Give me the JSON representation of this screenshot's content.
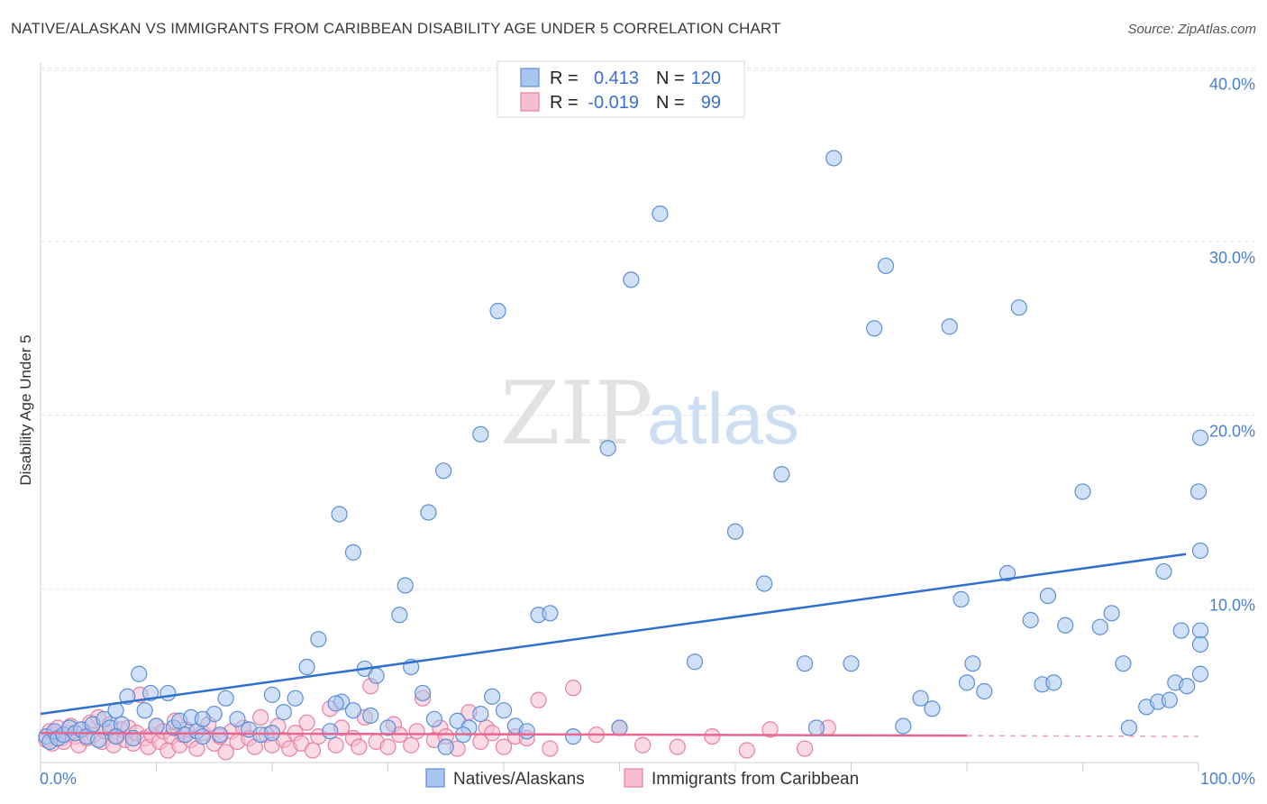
{
  "title": "NATIVE/ALASKAN VS IMMIGRANTS FROM CARIBBEAN DISABILITY AGE UNDER 5 CORRELATION CHART",
  "source": "Source: ZipAtlas.com",
  "watermark": {
    "zip": "ZIP",
    "atlas": "atlas"
  },
  "colors": {
    "blue": "#5b8fd6",
    "blue_fill": "#a9c6ef",
    "pink": "#e77fa4",
    "pink_fill": "#f5bdd0",
    "blue_line": "#2f6fce",
    "pink_line": "#e8668f"
  },
  "legend": {
    "rows": [
      {
        "r_label": "R =",
        "r_value": "0.413",
        "n_label": "N =",
        "n_value": "120"
      },
      {
        "r_label": "R =",
        "r_value": "-0.019",
        "n_label": "N =",
        "n_value": "99"
      }
    ]
  },
  "chart_data": {
    "type": "scatter",
    "title": "NATIVE/ALASKAN VS IMMIGRANTS FROM CARIBBEAN DISABILITY AGE UNDER 5 CORRELATION CHART",
    "xlabel": "",
    "ylabel": "Disability Age Under 5",
    "xlim": [
      0,
      100
    ],
    "ylim": [
      0,
      41
    ],
    "x_tick_labels": [
      "0.0%",
      "100.0%"
    ],
    "y_ticks": [
      10,
      20,
      30,
      40
    ],
    "y_tick_labels": [
      "10.0%",
      "20.0%",
      "30.0%",
      "40.0%"
    ],
    "grid": true,
    "series": [
      {
        "name": "Natives/Alaskans",
        "r": 0.413,
        "n": 120,
        "trend": {
          "x0": 0,
          "y0": 2.8,
          "x1": 100,
          "y1": 12.0
        },
        "points": [
          [
            0.5,
            1.5
          ],
          [
            0.8,
            1.2
          ],
          [
            1.2,
            1.8
          ],
          [
            1.5,
            1.4
          ],
          [
            2.0,
            1.6
          ],
          [
            2.5,
            2.0
          ],
          [
            3.0,
            1.7
          ],
          [
            3.5,
            1.9
          ],
          [
            4.0,
            1.5
          ],
          [
            4.5,
            2.2
          ],
          [
            5.0,
            1.3
          ],
          [
            5.5,
            2.5
          ],
          [
            6.0,
            2.0
          ],
          [
            6.5,
            3.0
          ],
          [
            7.0,
            2.2
          ],
          [
            7.5,
            3.8
          ],
          [
            8.0,
            1.4
          ],
          [
            9.0,
            3.0
          ],
          [
            9.5,
            4.0
          ],
          [
            10.0,
            2.1
          ],
          [
            11.0,
            4.0
          ],
          [
            11.5,
            2.0
          ],
          [
            12.0,
            2.4
          ],
          [
            12.5,
            1.6
          ],
          [
            13.0,
            2.6
          ],
          [
            13.5,
            1.8
          ],
          [
            14.0,
            1.5
          ],
          [
            15.0,
            2.8
          ],
          [
            15.5,
            1.6
          ],
          [
            16.0,
            3.7
          ],
          [
            17.0,
            2.5
          ],
          [
            18.0,
            1.9
          ],
          [
            19.0,
            1.6
          ],
          [
            20.0,
            3.9
          ],
          [
            21.0,
            2.9
          ],
          [
            22.0,
            3.7
          ],
          [
            23.0,
            5.5
          ],
          [
            24.0,
            7.1
          ],
          [
            25.0,
            1.8
          ],
          [
            26.0,
            3.5
          ],
          [
            27.0,
            3.0
          ],
          [
            28.0,
            5.4
          ],
          [
            28.5,
            2.7
          ],
          [
            29.0,
            5.0
          ],
          [
            30.0,
            2.0
          ],
          [
            31.0,
            8.5
          ],
          [
            32.0,
            5.5
          ],
          [
            33.0,
            4.0
          ],
          [
            34.0,
            2.5
          ],
          [
            35.0,
            0.9
          ],
          [
            36.0,
            2.4
          ],
          [
            37.0,
            2.0
          ],
          [
            38.0,
            2.8
          ],
          [
            39.0,
            3.8
          ],
          [
            40.0,
            3.0
          ],
          [
            41.0,
            2.1
          ],
          [
            42.0,
            1.8
          ],
          [
            43.0,
            8.5
          ],
          [
            44.0,
            8.6
          ],
          [
            25.8,
            14.3
          ],
          [
            27.0,
            12.1
          ],
          [
            31.5,
            10.2
          ],
          [
            33.5,
            14.4
          ],
          [
            34.8,
            16.8
          ],
          [
            38.0,
            18.9
          ],
          [
            39.5,
            26.0
          ],
          [
            49.0,
            18.1
          ],
          [
            51.0,
            27.8
          ],
          [
            53.5,
            31.6
          ],
          [
            56.5,
            5.8
          ],
          [
            60.0,
            13.3
          ],
          [
            62.5,
            10.3
          ],
          [
            64.0,
            16.6
          ],
          [
            66.0,
            5.7
          ],
          [
            67.0,
            2.0
          ],
          [
            68.5,
            34.8
          ],
          [
            70.0,
            5.7
          ],
          [
            72.0,
            25.0
          ],
          [
            73.0,
            28.6
          ],
          [
            74.5,
            2.1
          ],
          [
            76.0,
            3.7
          ],
          [
            77.0,
            3.1
          ],
          [
            78.5,
            25.1
          ],
          [
            79.5,
            9.4
          ],
          [
            80.0,
            4.6
          ],
          [
            80.5,
            5.7
          ],
          [
            81.5,
            4.1
          ],
          [
            83.5,
            10.9
          ],
          [
            84.5,
            26.2
          ],
          [
            85.5,
            8.2
          ],
          [
            86.5,
            4.5
          ],
          [
            87.0,
            9.6
          ],
          [
            87.5,
            4.6
          ],
          [
            88.5,
            7.9
          ],
          [
            90.0,
            15.6
          ],
          [
            91.5,
            7.8
          ],
          [
            92.5,
            8.6
          ],
          [
            93.5,
            5.7
          ],
          [
            94.0,
            2.0
          ],
          [
            95.5,
            3.2
          ],
          [
            96.5,
            3.5
          ],
          [
            97.0,
            11.0
          ],
          [
            97.5,
            3.6
          ],
          [
            98.0,
            4.6
          ],
          [
            98.5,
            7.6
          ],
          [
            99.0,
            4.4
          ],
          [
            100.0,
            15.6
          ],
          [
            101.0,
            7.6
          ],
          [
            101.5,
            6.8
          ],
          [
            102.0,
            12.2
          ],
          [
            102.8,
            5.1
          ],
          [
            103.2,
            18.7
          ],
          [
            6.5,
            1.5
          ],
          [
            8.5,
            5.1
          ],
          [
            14.0,
            2.5
          ],
          [
            20.0,
            1.7
          ],
          [
            25.5,
            3.4
          ],
          [
            46.0,
            1.5
          ],
          [
            50.0,
            2.0
          ],
          [
            36.5,
            1.6
          ]
        ]
      },
      {
        "name": "Immigrants from Caribbean",
        "r": -0.019,
        "n": 99,
        "trend": {
          "x0": 0,
          "y0": 1.7,
          "x1": 80,
          "y1": 1.55,
          "dash_to": 100,
          "dash_y": 1.5
        },
        "points": [
          [
            0.5,
            1.3
          ],
          [
            0.8,
            1.8
          ],
          [
            1.0,
            1.1
          ],
          [
            1.3,
            1.6
          ],
          [
            1.5,
            2.0
          ],
          [
            1.8,
            1.4
          ],
          [
            2.0,
            1.2
          ],
          [
            2.3,
            1.7
          ],
          [
            2.6,
            2.1
          ],
          [
            3.0,
            1.5
          ],
          [
            3.3,
            1.0
          ],
          [
            3.6,
            1.9
          ],
          [
            4.0,
            1.4
          ],
          [
            4.3,
            2.3
          ],
          [
            4.6,
            1.6
          ],
          [
            5.0,
            2.6
          ],
          [
            5.3,
            1.2
          ],
          [
            5.6,
            1.8
          ],
          [
            6.0,
            2.2
          ],
          [
            6.3,
            1.0
          ],
          [
            6.6,
            1.5
          ],
          [
            7.0,
            1.9
          ],
          [
            7.3,
            1.3
          ],
          [
            7.6,
            2.0
          ],
          [
            8.0,
            1.1
          ],
          [
            8.3,
            1.7
          ],
          [
            8.6,
            3.9
          ],
          [
            9.0,
            1.4
          ],
          [
            9.3,
            0.9
          ],
          [
            9.6,
            1.6
          ],
          [
            10.0,
            2.1
          ],
          [
            10.3,
            1.2
          ],
          [
            10.6,
            1.8
          ],
          [
            11.0,
            0.7
          ],
          [
            11.3,
            1.5
          ],
          [
            11.6,
            2.4
          ],
          [
            12.0,
            1.0
          ],
          [
            12.3,
            1.6
          ],
          [
            12.6,
            1.9
          ],
          [
            13.0,
            1.3
          ],
          [
            13.5,
            0.8
          ],
          [
            14.0,
            1.7
          ],
          [
            14.5,
            2.2
          ],
          [
            15.0,
            1.1
          ],
          [
            15.5,
            1.5
          ],
          [
            16.0,
            0.6
          ],
          [
            16.5,
            1.8
          ],
          [
            17.0,
            1.2
          ],
          [
            17.5,
            2.0
          ],
          [
            18.0,
            1.4
          ],
          [
            18.5,
            0.9
          ],
          [
            19.0,
            2.6
          ],
          [
            19.5,
            1.6
          ],
          [
            20.0,
            1.0
          ],
          [
            20.5,
            2.1
          ],
          [
            21.0,
            1.3
          ],
          [
            21.5,
            0.8
          ],
          [
            22.0,
            1.7
          ],
          [
            22.5,
            1.1
          ],
          [
            23.0,
            2.3
          ],
          [
            23.5,
            0.7
          ],
          [
            24.0,
            1.5
          ],
          [
            25.0,
            3.1
          ],
          [
            25.5,
            1.0
          ],
          [
            26.0,
            2.0
          ],
          [
            27.0,
            1.4
          ],
          [
            27.5,
            0.9
          ],
          [
            28.0,
            2.6
          ],
          [
            28.5,
            4.4
          ],
          [
            29.0,
            1.2
          ],
          [
            30.0,
            0.9
          ],
          [
            30.5,
            2.2
          ],
          [
            31.0,
            1.6
          ],
          [
            32.0,
            1.0
          ],
          [
            32.5,
            1.8
          ],
          [
            33.0,
            3.7
          ],
          [
            34.0,
            1.3
          ],
          [
            34.5,
            2.0
          ],
          [
            35.0,
            1.5
          ],
          [
            36.0,
            0.8
          ],
          [
            37.0,
            2.9
          ],
          [
            38.0,
            1.2
          ],
          [
            38.5,
            2.0
          ],
          [
            39.0,
            1.7
          ],
          [
            40.0,
            0.9
          ],
          [
            41.0,
            1.5
          ],
          [
            42.0,
            1.4
          ],
          [
            43.0,
            3.6
          ],
          [
            44.0,
            0.8
          ],
          [
            46.0,
            4.3
          ],
          [
            48.0,
            1.6
          ],
          [
            50.0,
            2.0
          ],
          [
            52.0,
            1.0
          ],
          [
            55.0,
            0.9
          ],
          [
            58.0,
            1.5
          ],
          [
            61.0,
            0.7
          ],
          [
            63.0,
            1.9
          ],
          [
            66.0,
            0.8
          ],
          [
            68.0,
            2.0
          ]
        ]
      }
    ]
  }
}
